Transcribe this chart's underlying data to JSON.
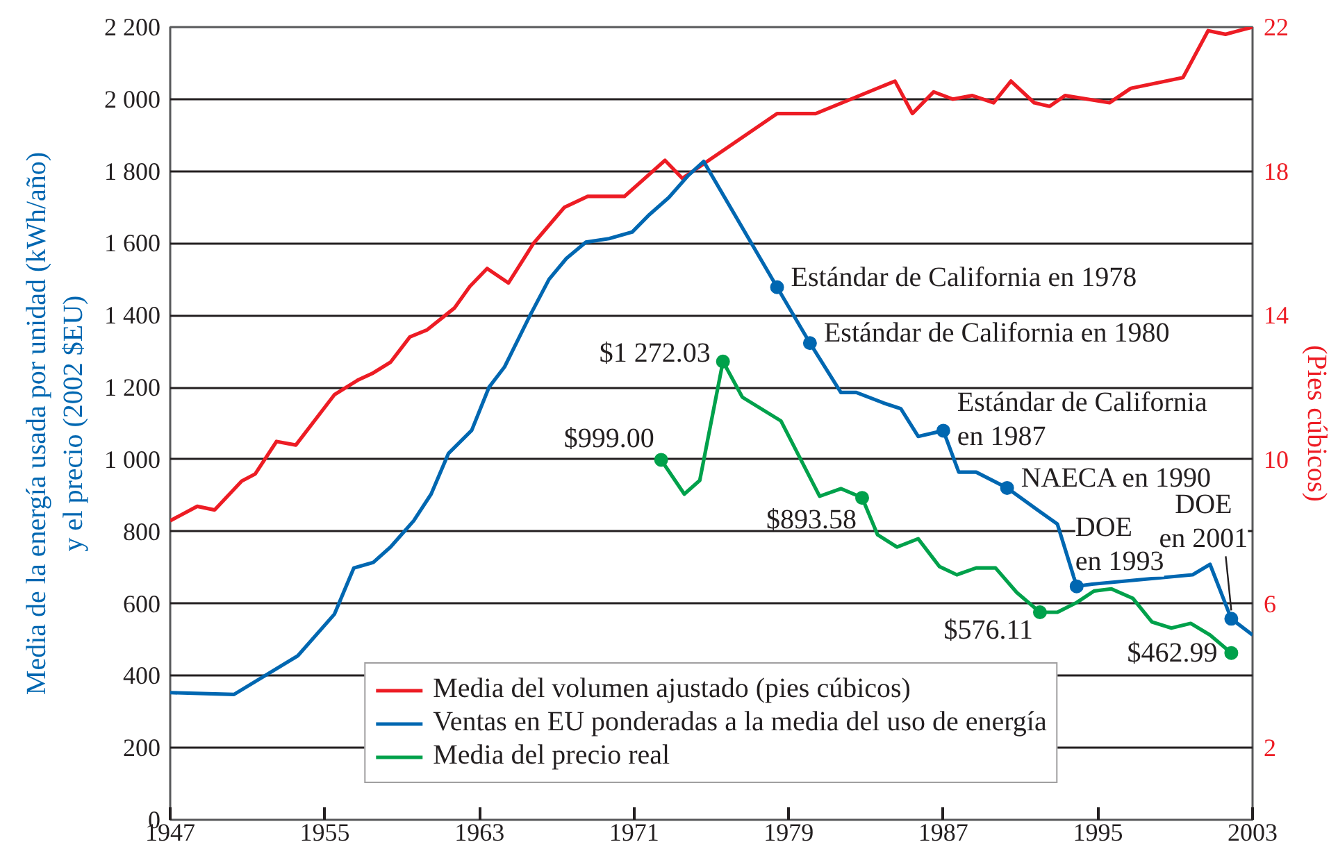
{
  "chart_data": {
    "type": "line",
    "xlim": [
      1947,
      2003
    ],
    "xticks": [
      1947,
      1955,
      1963,
      1971,
      1979,
      1987,
      1995,
      2003
    ],
    "ylim": [
      0,
      2200
    ],
    "yticks": [
      0,
      200,
      400,
      600,
      800,
      {
        "value": 1000,
        "label": "1 000"
      },
      {
        "value": 1200,
        "label": "1 200"
      },
      {
        "value": 1400,
        "label": "1 400"
      },
      {
        "value": 1600,
        "label": "1 600"
      },
      {
        "value": 1800,
        "label": "1 800"
      },
      {
        "value": 2000,
        "label": "2 000"
      },
      {
        "value": 2200,
        "label": "2 200"
      }
    ],
    "y2lim": [
      0,
      22
    ],
    "y2ticks": [
      2,
      6,
      10,
      14,
      18,
      22
    ],
    "ylabel": "Media de la energía usada por unidad (kWh/año) y el precio (2002 $EU)",
    "y2label": "(Pies cúbicos)",
    "grid": "y",
    "legend": "bottom",
    "series": [
      {
        "name": "Media del volumen ajustado (pies cúbicos)",
        "color": "#ed1c24",
        "axis": "y2",
        "x": [
          1947.0,
          1948.4,
          1949.3,
          1950.7,
          1951.4,
          1952.5,
          1953.5,
          1955.5,
          1956.7,
          1957.5,
          1958.4,
          1959.4,
          1960.3,
          1961.7,
          1962.5,
          1963.4,
          1964.5,
          1965.8,
          1967.4,
          1968.6,
          1970.5,
          1972.6,
          1973.5,
          1978.4,
          1980.4,
          1984.5,
          1985.4,
          1986.5,
          1987.5,
          1988.5,
          1989.6,
          1990.5,
          1991.7,
          1992.5,
          1993.3,
          1995.6,
          1996.7,
          1999.4,
          2000.7,
          2001.6,
          2003.0
        ],
        "values": [
          8.3,
          8.7,
          8.6,
          9.4,
          9.6,
          10.5,
          10.4,
          11.8,
          12.2,
          12.4,
          12.7,
          13.4,
          13.6,
          14.2,
          14.8,
          15.3,
          14.9,
          16.0,
          17.0,
          17.3,
          17.3,
          18.3,
          17.8,
          19.6,
          19.6,
          20.5,
          19.6,
          20.2,
          20.0,
          20.1,
          19.9,
          20.5,
          19.9,
          19.8,
          20.1,
          19.9,
          20.3,
          20.6,
          21.9,
          21.8,
          22.0
        ]
      },
      {
        "name": "Ventas en EU ponderadas a la media del uso de energía",
        "color": "#0067b1",
        "x": [
          1947.0,
          1950.3,
          1953.6,
          1955.5,
          1956.5,
          1957.5,
          1958.4,
          1959.6,
          1960.5,
          1961.4,
          1962.6,
          1963.5,
          1964.3,
          1965.6,
          1966.6,
          1967.5,
          1968.5,
          1969.7,
          1970.9,
          1971.8,
          1972.8,
          1973.8,
          1974.6,
          1978.4,
          1980.1,
          1981.7,
          1982.5,
          1983.9,
          1984.8,
          1985.7,
          1987.0,
          1987.8,
          1988.7,
          1990.3,
          1991.9,
          1992.9,
          1993.9,
          1994.7,
          1999.9,
          2000.8,
          2001.9,
          2003.0
        ],
        "values": [
          353,
          348,
          455,
          571,
          699,
          714,
          757,
          830,
          904,
          1017,
          1081,
          1201,
          1257,
          1398,
          1500,
          1558,
          1603,
          1613,
          1631,
          1680,
          1727,
          1788,
          1827,
          1478,
          1323,
          1186,
          1186,
          1157,
          1141,
          1064,
          1080,
          965,
          965,
          921,
          859,
          821,
          648,
          654,
          680,
          709,
          558,
          513
        ]
      },
      {
        "name": "Media del precio real",
        "color": "#00a14b",
        "x": [
          1972.4,
          1973.6,
          1974.4,
          1975.6,
          1976.6,
          1978.6,
          1980.6,
          1981.7,
          1982.8,
          1983.6,
          1984.6,
          1985.7,
          1986.8,
          1987.7,
          1988.7,
          1989.7,
          1990.8,
          1992.0,
          1992.9,
          1993.9,
          1994.8,
          1995.7,
          1996.8,
          1997.8,
          1998.8,
          1999.8,
          2000.8,
          2001.9
        ],
        "values": [
          999,
          904,
          942,
          1272,
          1173,
          1107,
          898,
          919,
          894,
          791,
          757,
          780,
          703,
          680,
          699,
          699,
          631,
          576,
          576,
          603,
          635,
          641,
          615,
          549,
          532,
          545,
          513,
          463
        ]
      },
      {
        "type": "scatter",
        "marker": "circle",
        "color": "#0067b1",
        "x": [
          1978.4,
          1980.1,
          1987.0,
          1990.3,
          1993.9,
          2001.9
        ],
        "values": [
          1478,
          1323,
          1080,
          921,
          648,
          558
        ]
      },
      {
        "type": "scatter",
        "marker": "circle",
        "color": "#00a14b",
        "x": [
          1972.4,
          1975.6,
          1982.8,
          1992.0,
          2001.9
        ],
        "values": [
          999.0,
          1272.03,
          893.58,
          576.11,
          462.99
        ],
        "value_labels": [
          "$999.00",
          "$1 272.03",
          "$893.58",
          "$576.11",
          "$462.99"
        ]
      }
    ],
    "annotations": [
      {
        "text": "Estándar de California en 1978",
        "x": 1978.4,
        "y": 1478
      },
      {
        "text": "Estándar de California en 1980",
        "x": 1980.1,
        "y": 1323
      },
      {
        "text": "Estándar de California en 1987",
        "x": 1987.0,
        "y": 1080
      },
      {
        "text": "NAECA en 1990",
        "x": 1990.3,
        "y": 921
      },
      {
        "text": "DOE en 1993",
        "x": 1993.9,
        "y": 648
      },
      {
        "text": "DOE en 2001",
        "x": 2001.9,
        "y": 558
      }
    ]
  }
}
